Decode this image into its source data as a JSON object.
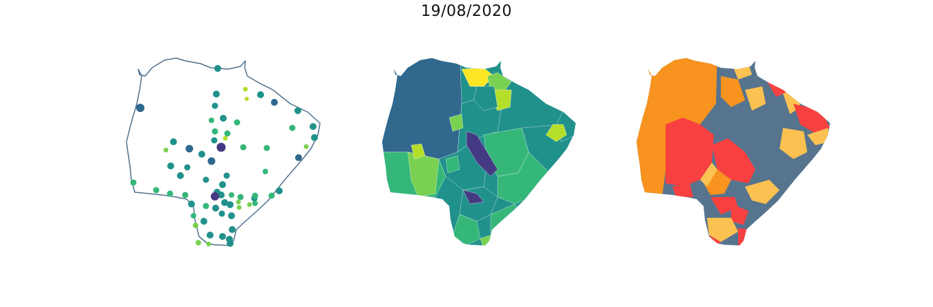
{
  "title": "19/08/2020",
  "colors": {
    "viridis_dark_purple": "#443a83",
    "viridis_blue": "#31688e",
    "viridis_teal": "#21918c",
    "viridis_green": "#35b779",
    "viridis_lightgreen": "#7ad151",
    "viridis_yellowgreen": "#b5de2b",
    "viridis_yellow": "#fde725",
    "outline": "#50708c",
    "class_orange": "#f7931e",
    "class_red": "#f94040",
    "class_yellow": "#fbc251",
    "class_slate": "#57748e"
  },
  "maps": [
    {
      "kind": "proportional-points",
      "legend": []
    },
    {
      "kind": "choropleth-viridis",
      "legend": []
    },
    {
      "kind": "categorical-choropleth",
      "legend": []
    }
  ]
}
